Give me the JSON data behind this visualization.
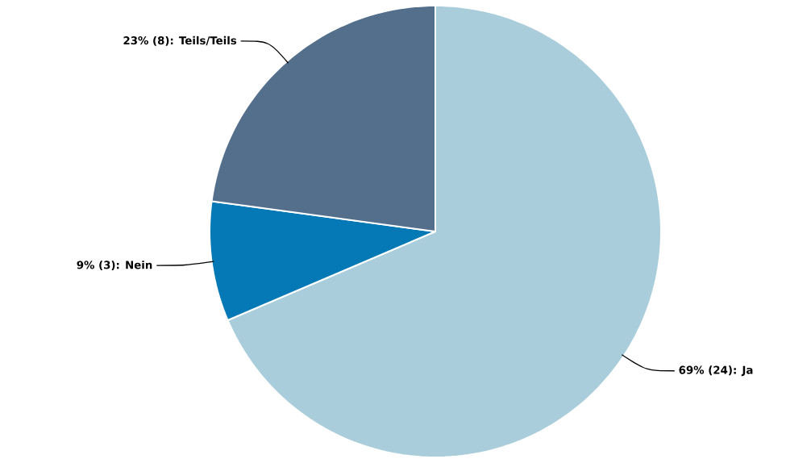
{
  "chart_data": {
    "type": "pie",
    "categories": [
      "Ja",
      "Nein",
      "Teils/Teils"
    ],
    "values": [
      24,
      3,
      8
    ],
    "value_labels": [
      "69% (24):",
      "9% (3):",
      "23% (8):"
    ],
    "colors": [
      "#a9cddb",
      "#0479b5",
      "#546f8c"
    ]
  }
}
